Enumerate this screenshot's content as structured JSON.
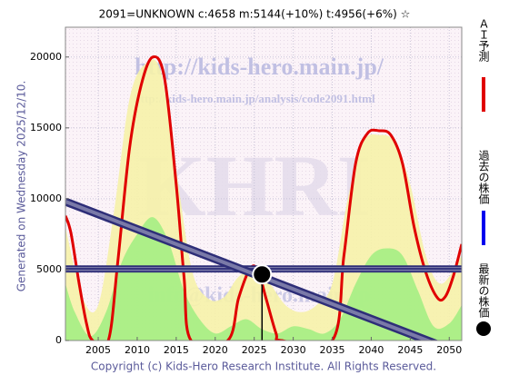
{
  "chart_data": {
    "type": "line",
    "title": "2091=UNKNOWN    c:4658  m:5144(+10%)  t:4956(+6%)  ☆",
    "side_label": "Generated on Wednesday 2025/12/10.",
    "footer": "Copyright (c) Kids-Hero Research Institute. All Rights Reserved.",
    "watermarks": [
      "http://kids-hero.main.jp/",
      "http://kids-hero.main.jp/analysis/code2091.html",
      "KHRI",
      "info@kids-hero.main.jp"
    ],
    "xlim": [
      2000.8,
      2051.6
    ],
    "ylim": [
      0,
      22100
    ],
    "xticks": [
      2005,
      2010,
      2015,
      2020,
      2025,
      2030,
      2035,
      2040,
      2045,
      2050
    ],
    "yticks": [
      0,
      5000,
      10000,
      15000,
      20000
    ],
    "grid": true,
    "series": [
      {
        "kind": "area",
        "color": "#f6f2a8",
        "x": [
          2000.8,
          2003,
          2005,
          2007,
          2009,
          2011,
          2013,
          2015,
          2017,
          2019,
          2021,
          2023,
          2025,
          2027,
          2029,
          2031,
          2033,
          2035,
          2037,
          2039,
          2041,
          2043,
          2045,
          2047,
          2049,
          2051.6
        ],
        "values": [
          8000,
          3000,
          2500,
          9000,
          17000,
          19500,
          19000,
          12000,
          5000,
          3000,
          3000,
          4500,
          5000,
          4000,
          2500,
          2000,
          2500,
          4000,
          10000,
          14000,
          14500,
          14000,
          11000,
          6000,
          4000,
          6000
        ]
      },
      {
        "kind": "area",
        "color": "#a4ee84",
        "x": [
          2000.8,
          2002,
          2004,
          2006,
          2008,
          2010,
          2012,
          2014,
          2016,
          2018,
          2020,
          2022,
          2024,
          2026,
          2028,
          2030,
          2032,
          2034,
          2036,
          2038,
          2040,
          2042,
          2044,
          2046,
          2048,
          2050,
          2051.6
        ],
        "values": [
          4000,
          2000,
          300,
          2000,
          5500,
          7500,
          8700,
          7000,
          3500,
          1500,
          500,
          1000,
          1500,
          800,
          500,
          1000,
          800,
          500,
          1500,
          4000,
          6000,
          6500,
          6000,
          3500,
          1000,
          1200,
          2500
        ]
      },
      {
        "kind": "line",
        "name": "ＡＩ予測",
        "color": "#e00000",
        "x": [
          2000.8,
          2001.5,
          2002.5,
          2003.5,
          2004.3,
          2006.3,
          2007.5,
          2009,
          2010.5,
          2012,
          2013.5,
          2015,
          2016,
          2016.9,
          2021.6,
          2023,
          2024.5,
          2025.5,
          2026.5,
          2027.8,
          2028.5,
          2035,
          2036.5,
          2038,
          2039.5,
          2041,
          2042.5,
          2044,
          2045.5,
          2047,
          2048.5,
          2049.5,
          2050.5,
          2051.6
        ],
        "values": [
          8800,
          7600,
          4200,
          1200,
          0,
          0,
          5500,
          13500,
          18000,
          20000,
          18500,
          11000,
          4500,
          0,
          0,
          3000,
          5100,
          4900,
          3000,
          500,
          0,
          0,
          6000,
          12500,
          14600,
          14800,
          14500,
          12500,
          8000,
          4800,
          3000,
          3100,
          4500,
          6800
        ]
      },
      {
        "kind": "band",
        "name": "過去の株価",
        "color": "#2e2e78",
        "x": [
          2000.8,
          2047.2
        ],
        "values": [
          9800,
          0
        ]
      }
    ],
    "ref_lines": {
      "color": "#2e2e78",
      "values": [
        5144,
        4956
      ]
    },
    "latest": {
      "name": "最新の株価",
      "color": "#000000",
      "x": 2026,
      "y": 4658
    }
  }
}
